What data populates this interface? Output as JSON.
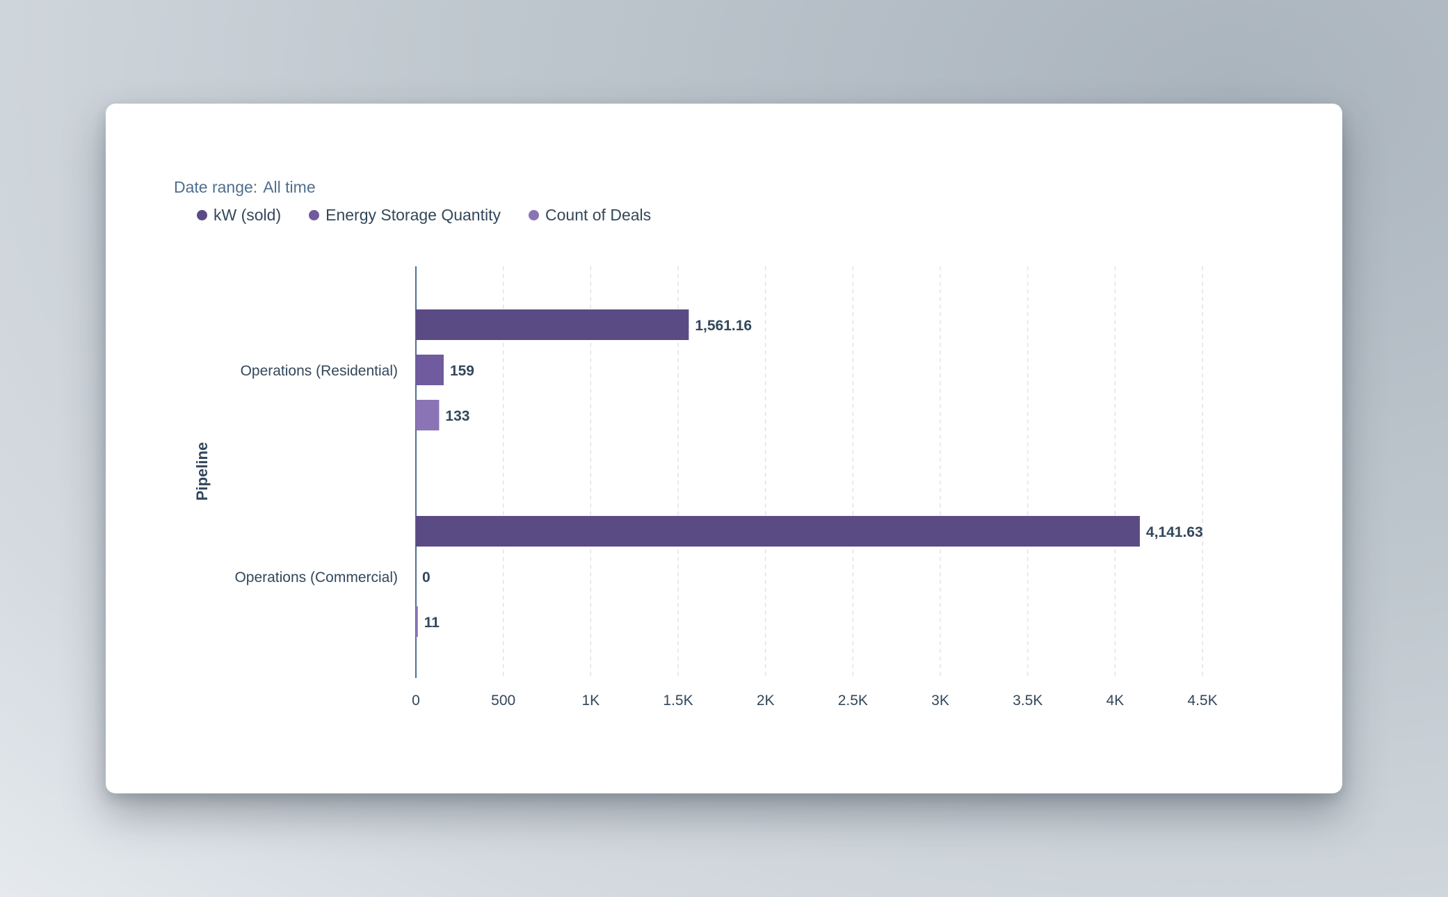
{
  "date_range": {
    "label": "Date range:",
    "value": "All time"
  },
  "colors": {
    "kw_sold": "#5b4b85",
    "energy_storage": "#6f5b9d",
    "count_deals": "#8a74b5",
    "axis": "#516f90",
    "grid": "#dfe3eb"
  },
  "chart_data": {
    "type": "bar",
    "orientation": "horizontal",
    "ylabel": "Pipeline",
    "xlabel": "",
    "xlim": [
      0,
      4500
    ],
    "xticks": [
      0,
      500,
      1000,
      1500,
      2000,
      2500,
      3000,
      3500,
      4000,
      4500
    ],
    "xtick_labels": [
      "0",
      "500",
      "1K",
      "1.5K",
      "2K",
      "2.5K",
      "3K",
      "3.5K",
      "4K",
      "4.5K"
    ],
    "grid": "vertical-dashed",
    "legend_position": "top-left",
    "categories": [
      "Operations (Residential)",
      "Operations (Commercial)"
    ],
    "series": [
      {
        "name": "kW (sold)",
        "values": [
          1561.16,
          4141.63
        ],
        "labels": [
          "1,561.16",
          "4,141.63"
        ],
        "color": "#5b4b85"
      },
      {
        "name": "Energy Storage Quantity",
        "values": [
          159,
          0
        ],
        "labels": [
          "159",
          "0"
        ],
        "color": "#6f5b9d"
      },
      {
        "name": "Count of Deals",
        "values": [
          133,
          11
        ],
        "labels": [
          "133",
          "11"
        ],
        "color": "#8a74b5"
      }
    ]
  }
}
